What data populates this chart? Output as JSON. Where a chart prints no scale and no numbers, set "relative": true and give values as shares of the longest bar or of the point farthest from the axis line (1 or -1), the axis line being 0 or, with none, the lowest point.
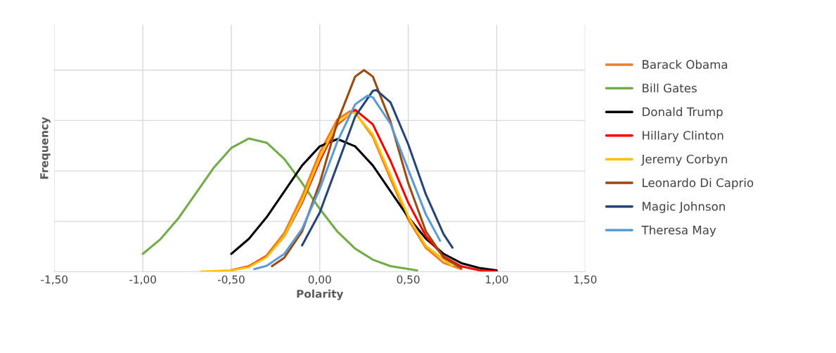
{
  "chart_data": {
    "type": "line",
    "xlabel": "Polarity",
    "ylabel": "Frequency",
    "relative": true,
    "xlim": [
      -1.5,
      1.5
    ],
    "xticks": [
      {
        "value": -1.5,
        "label": "-1,50"
      },
      {
        "value": -1.0,
        "label": "-1,00"
      },
      {
        "value": -0.5,
        "label": "-0,50"
      },
      {
        "value": 0,
        "label": "0,00"
      },
      {
        "value": 0.5,
        "label": "0,50"
      },
      {
        "value": 1.0,
        "label": "1,00"
      },
      {
        "value": 1.5,
        "label": "1,50"
      }
    ],
    "grid": true,
    "legend": "right",
    "marker": "none",
    "line_style": "solid",
    "series": [
      {
        "name": "Barack Obama",
        "color": "#ed7d31",
        "x": [
          -0.4,
          -0.3,
          -0.2,
          -0.1,
          0,
          0.1,
          0.17,
          0.2,
          0.3,
          0.4,
          0.5,
          0.6,
          0.7,
          0.8
        ],
        "values": [
          0.028,
          0.081,
          0.193,
          0.375,
          0.591,
          0.756,
          0.796,
          0.789,
          0.669,
          0.461,
          0.259,
          0.118,
          0.044,
          0.013
        ]
      },
      {
        "name": "Bill Gates",
        "color": "#70ad47",
        "x": [
          -1.0,
          -0.9,
          -0.8,
          -0.7,
          -0.6,
          -0.5,
          -0.4,
          -0.3,
          -0.2,
          -0.1,
          0,
          0.1,
          0.2,
          0.3,
          0.4,
          0.55
        ],
        "values": [
          0.089,
          0.162,
          0.264,
          0.389,
          0.515,
          0.614,
          0.661,
          0.64,
          0.559,
          0.44,
          0.312,
          0.199,
          0.115,
          0.06,
          0.028,
          0.007
        ]
      },
      {
        "name": "Donald Trump",
        "color": "#000000",
        "x": [
          -0.5,
          -0.4,
          -0.3,
          -0.2,
          -0.1,
          0,
          0.1,
          0.2,
          0.3,
          0.4,
          0.5,
          0.6,
          0.7,
          0.8,
          0.9,
          1.0
        ],
        "values": [
          0.089,
          0.164,
          0.271,
          0.399,
          0.527,
          0.622,
          0.658,
          0.622,
          0.527,
          0.399,
          0.271,
          0.164,
          0.089,
          0.043,
          0.019,
          0.007
        ]
      },
      {
        "name": "Hillary Clinton",
        "color": "#ff0000",
        "x": [
          -0.5,
          -0.4,
          -0.3,
          -0.2,
          -0.1,
          0,
          0.1,
          0.2,
          0.3,
          0.4,
          0.5,
          0.6,
          0.7,
          0.8,
          0.9,
          1.0
        ],
        "values": [
          0.008,
          0.027,
          0.076,
          0.177,
          0.343,
          0.55,
          0.731,
          0.803,
          0.731,
          0.55,
          0.343,
          0.177,
          0.076,
          0.027,
          0.008,
          0.002
        ]
      },
      {
        "name": "Jeremy Corbyn",
        "color": "#ffc000",
        "x": [
          -0.67,
          -0.5,
          -0.4,
          -0.3,
          -0.2,
          -0.1,
          0,
          0.1,
          0.18,
          0.2,
          0.3,
          0.4,
          0.5,
          0.6,
          0.75
        ],
        "values": [
          0.001,
          0.007,
          0.024,
          0.073,
          0.178,
          0.351,
          0.564,
          0.738,
          0.789,
          0.786,
          0.68,
          0.479,
          0.274,
          0.128,
          0.028
        ]
      },
      {
        "name": "Leonardo Di Caprio",
        "color": "#9e480e",
        "x": [
          -0.27,
          -0.2,
          -0.1,
          0,
          0.1,
          0.2,
          0.25,
          0.3,
          0.4,
          0.5,
          0.6,
          0.7,
          0.8
        ],
        "values": [
          0.028,
          0.07,
          0.2,
          0.44,
          0.744,
          0.968,
          1.0,
          0.968,
          0.744,
          0.44,
          0.2,
          0.07,
          0.019
        ]
      },
      {
        "name": "Magic Johnson",
        "color": "#264478",
        "x": [
          -0.1,
          0,
          0.1,
          0.2,
          0.3,
          0.32,
          0.4,
          0.5,
          0.6,
          0.7,
          0.75
        ],
        "values": [
          0.131,
          0.294,
          0.531,
          0.77,
          0.897,
          0.901,
          0.84,
          0.632,
          0.383,
          0.186,
          0.12
        ]
      },
      {
        "name": "Theresa May",
        "color": "#5b9bd5",
        "x": [
          -0.37,
          -0.3,
          -0.2,
          -0.1,
          0,
          0.1,
          0.2,
          0.27,
          0.3,
          0.4,
          0.5,
          0.6,
          0.68
        ],
        "values": [
          0.013,
          0.03,
          0.089,
          0.212,
          0.411,
          0.647,
          0.83,
          0.873,
          0.865,
          0.733,
          0.506,
          0.284,
          0.154
        ]
      }
    ]
  }
}
